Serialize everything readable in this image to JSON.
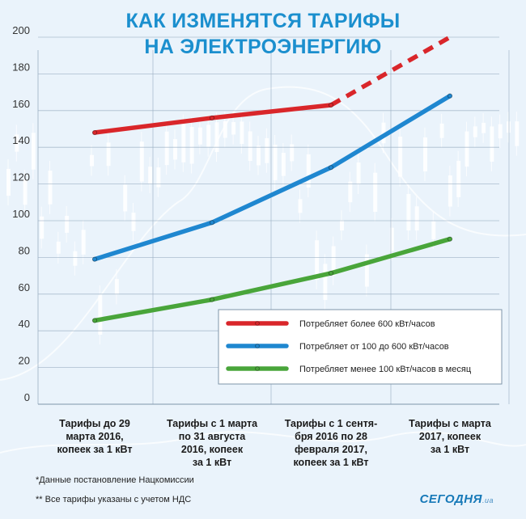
{
  "title_line1": "КАК ИЗМЕНЯТСЯ ТАРИФЫ",
  "title_line2": "НА ЭЛЕКТРОЭНЕРГИЮ",
  "colors": {
    "title": "#1b8fce",
    "background": "#eaf3fb",
    "grid": "#9cb0c4"
  },
  "chart_data": {
    "type": "line",
    "title": "КАК ИЗМЕНЯТСЯ ТАРИФЫ НА ЭЛЕКТРОЭНЕРГИЮ",
    "ylim": [
      0,
      200
    ],
    "yticks": [
      0,
      20,
      40,
      60,
      80,
      100,
      120,
      140,
      160,
      180,
      200
    ],
    "grid": true,
    "legend_position": "inside-right",
    "categories": [
      [
        "Тарифы до 29",
        "марта 2016,",
        "копеек за 1 кВт"
      ],
      [
        "Тарифы с 1 марта",
        "по 31 августа",
        "2016, копеек",
        "за 1 кВт"
      ],
      [
        "Тарифы с 1 сентя-",
        "бря 2016 по 28",
        "февраля 2017,",
        "копеек за 1 кВт"
      ],
      [
        "Тарифы с марта",
        "2017, копеек",
        "за 1 кВт"
      ]
    ],
    "series": [
      {
        "name": "Потребляет более 600 кВт/часов",
        "color": "#d9262a",
        "points": [
          {
            "x": 0,
            "y": 148
          },
          {
            "x": 1,
            "y": 156
          },
          {
            "x": 2,
            "y": 163
          },
          {
            "x": 3,
            "y": 200,
            "projected": true
          }
        ]
      },
      {
        "name": "Потребляет от 100 до 600 кВт/часов",
        "color": "#1f87d0",
        "points": [
          {
            "x": 0,
            "y": 79
          },
          {
            "x": 1,
            "y": 99
          },
          {
            "x": 2,
            "y": 129
          },
          {
            "x": 3,
            "y": 168
          }
        ]
      },
      {
        "name": "Потребляет менее 100 кВт/часов в месяц",
        "color": "#49a53a",
        "points": [
          {
            "x": 0,
            "y": 45.6
          },
          {
            "x": 1,
            "y": 57
          },
          {
            "x": 2,
            "y": 71.4
          },
          {
            "x": 3,
            "y": 90
          }
        ]
      }
    ]
  },
  "footnote1": "*Данные постановление Нацкомиссии",
  "footnote2": "** Все тарифы указаны с учетом НДС",
  "brand": "СЕГОДНЯ",
  "brand_suffix": ".ua"
}
